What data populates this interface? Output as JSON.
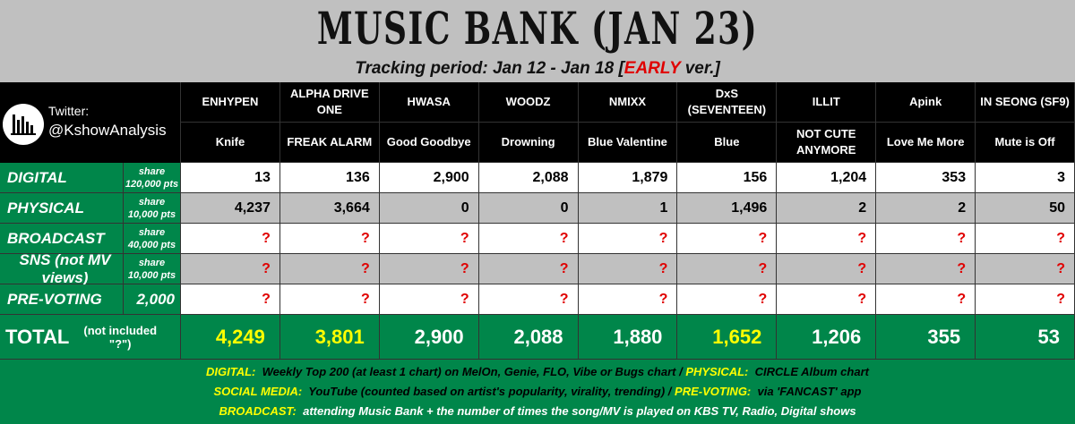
{
  "header": {
    "title": "MUSIC BANK (JAN 23)",
    "subtitle_prefix": "Tracking period: Jan 12 - Jan 18 [",
    "subtitle_early": "EARLY",
    "subtitle_suffix": " ver.]"
  },
  "logo": {
    "label": "Twitter:",
    "handle": "@KshowAnalysis",
    "icon": "bar-chart-icon"
  },
  "artists": [
    {
      "artist": "ENHYPEN",
      "song": "Knife"
    },
    {
      "artist": "ALPHA DRIVE ONE",
      "song": "FREAK ALARM"
    },
    {
      "artist": "HWASA",
      "song": "Good Goodbye"
    },
    {
      "artist": "WOODZ",
      "song": "Drowning"
    },
    {
      "artist": "NMIXX",
      "song": "Blue Valentine"
    },
    {
      "artist": "DxS (SEVENTEEN)",
      "song": "Blue"
    },
    {
      "artist": "ILLIT",
      "song": "NOT CUTE ANYMORE"
    },
    {
      "artist": "Apink",
      "song": "Love Me More"
    },
    {
      "artist": "IN SEONG (SF9)",
      "song": "Mute is Off"
    }
  ],
  "rows": [
    {
      "label": "DIGITAL",
      "share1": "share",
      "share2": "120,000 pts",
      "values": [
        "13",
        "136",
        "2,900",
        "2,088",
        "1,879",
        "156",
        "1,204",
        "353",
        "3"
      ]
    },
    {
      "label": "PHYSICAL",
      "share1": "share",
      "share2": "10,000 pts",
      "values": [
        "4,237",
        "3,664",
        "0",
        "0",
        "1",
        "1,496",
        "2",
        "2",
        "50"
      ]
    },
    {
      "label": "BROADCAST",
      "share1": "share",
      "share2": "40,000 pts",
      "values": [
        "?",
        "?",
        "?",
        "?",
        "?",
        "?",
        "?",
        "?",
        "?"
      ]
    },
    {
      "label": "SNS  (not MV views)",
      "share1": "share",
      "share2": "10,000 pts",
      "values": [
        "?",
        "?",
        "?",
        "?",
        "?",
        "?",
        "?",
        "?",
        "?"
      ]
    },
    {
      "label": "PRE-VOTING",
      "share1": "2,000",
      "share2": "",
      "values": [
        "?",
        "?",
        "?",
        "?",
        "?",
        "?",
        "?",
        "?",
        "?"
      ]
    }
  ],
  "total": {
    "label": "TOTAL",
    "note": "(not included \"?\")",
    "values": [
      "4,249",
      "3,801",
      "2,900",
      "2,088",
      "1,880",
      "1,652",
      "1,206",
      "355",
      "53"
    ],
    "highlighted": [
      true,
      true,
      false,
      false,
      false,
      true,
      false,
      false,
      false
    ]
  },
  "footer": {
    "l1k1": "DIGITAL:",
    "l1t1": "Weekly Top 200 (at least 1 chart) on MelOn, Genie, FLO, Vibe or Bugs chart /",
    "l1k2": "PHYSICAL:",
    "l1t2": "CIRCLE Album chart",
    "l2k1": "SOCIAL MEDIA:",
    "l2t1": "YouTube (counted based on artist's popularity, virality, trending)  /",
    "l2k2": "PRE-VOTING:",
    "l2t2": "via 'FANCAST' app",
    "l3k1": "BROADCAST:",
    "l3t1": "attending Music Bank + the number of times the song/MV is played on KBS TV, Radio, Digital shows"
  },
  "colors": {
    "green": "#00864a",
    "highlight": "#ffff00",
    "unknown": "#e00000",
    "gray": "#c0c0c0"
  }
}
